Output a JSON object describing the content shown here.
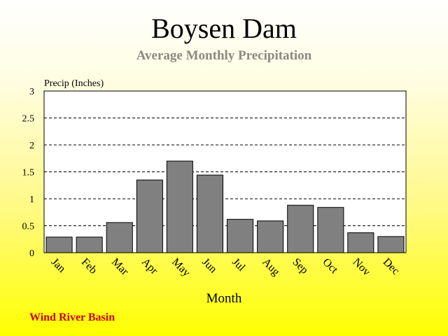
{
  "header": {
    "title": "Boysen Dam",
    "subtitle": "Average Monthly Precipitation"
  },
  "footer": {
    "label": "Wind River Basin",
    "label_color": "#d00000"
  },
  "colors": {
    "bar_fill": "#808080",
    "bar_stroke": "#000000",
    "plot_background": "#ffffff",
    "subtitle": "#8a8a80"
  },
  "chart_data": {
    "type": "bar",
    "title": "Boysen Dam",
    "subtitle": "Average Monthly Precipitation",
    "xlabel": "Month",
    "ylabel": "Precip (Inches)",
    "categories": [
      "Jan",
      "Feb",
      "Mar",
      "Apr",
      "May",
      "Jun",
      "Jul",
      "Aug",
      "Sep",
      "Oct",
      "Nov",
      "Dec"
    ],
    "values": [
      0.29,
      0.29,
      0.56,
      1.35,
      1.7,
      1.44,
      0.62,
      0.59,
      0.88,
      0.84,
      0.37,
      0.3
    ],
    "ylim": [
      0,
      3
    ],
    "yticks": [
      "0",
      "0.5",
      "1",
      "1.5",
      "2",
      "2.5",
      "3"
    ],
    "grid": true,
    "grid_style": "dashed horizontal",
    "legend": "none"
  }
}
